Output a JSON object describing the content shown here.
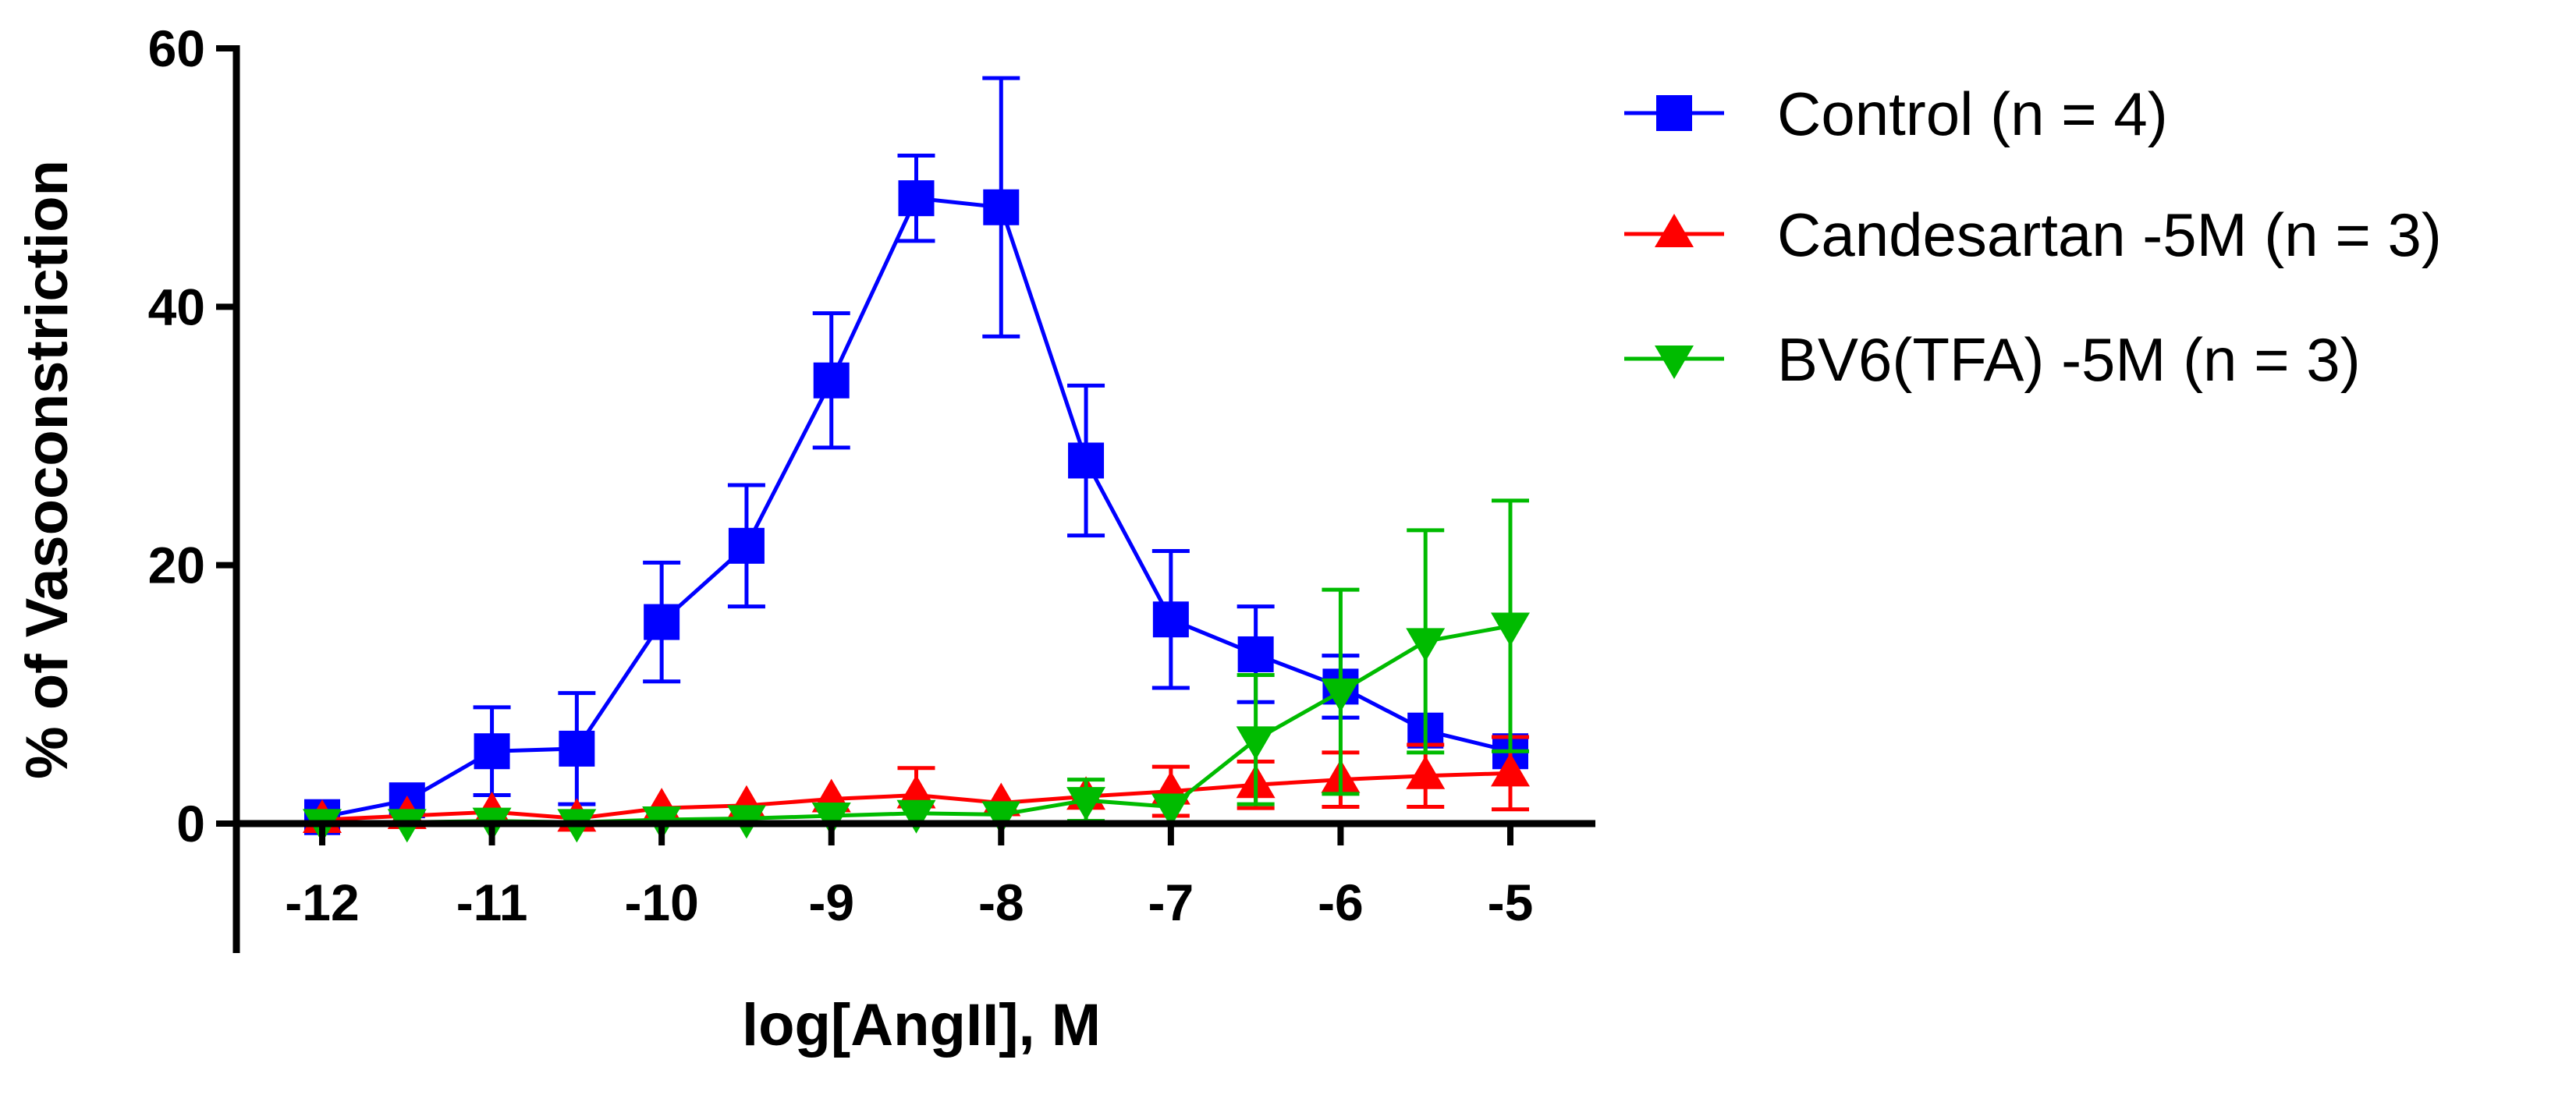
{
  "chart_data": {
    "type": "line",
    "title": "",
    "xlabel": "log[AngII], M",
    "ylabel": "% of Vasoconstriction",
    "xlim": [
      -12.5,
      -4.5
    ],
    "ylim": [
      -10,
      60
    ],
    "x_ticks": [
      -12,
      -11,
      -10,
      -9,
      -8,
      -7,
      -6,
      -5
    ],
    "x_tick_labels": [
      "-12",
      "-11",
      "-10",
      "-9",
      "-8",
      "-7",
      "-6",
      "-5"
    ],
    "y_ticks": [
      0,
      20,
      40,
      60
    ],
    "y_tick_labels": [
      "0",
      "20",
      "40",
      "60"
    ],
    "grid": false,
    "legend_position": "right",
    "series": [
      {
        "name": "Control (n = 4)",
        "color": "#0000ff",
        "marker": "square",
        "x": [
          -12,
          -11.5,
          -11,
          -10.5,
          -10,
          -9.5,
          -9,
          -8.5,
          -8,
          -7.5,
          -7,
          -6.5,
          -6,
          -5.5,
          -5
        ],
        "y": [
          0.5,
          1.8,
          5.6,
          5.8,
          15.6,
          21.5,
          34.3,
          48.4,
          47.7,
          28.1,
          15.8,
          13.1,
          10.6,
          7.2,
          5.6
        ],
        "err": [
          0,
          0,
          3.4,
          4.3,
          4.6,
          4.7,
          5.2,
          3.3,
          10,
          5.8,
          5.3,
          3.7,
          2.4,
          0,
          0
        ]
      },
      {
        "name": "Candesartan -5M (n = 3)",
        "color": "#ff0000",
        "marker": "triangle-up",
        "x": [
          -12,
          -11.5,
          -11,
          -10.5,
          -10,
          -9.5,
          -9,
          -8.5,
          -8,
          -7.5,
          -7,
          -6.5,
          -6,
          -5.5,
          -5
        ],
        "y": [
          0.3,
          0.6,
          0.9,
          0.4,
          1.2,
          1.4,
          1.9,
          2.2,
          1.6,
          2.1,
          2.5,
          3.0,
          3.4,
          3.7,
          3.9
        ],
        "err": [
          0,
          0,
          0,
          0,
          0,
          0,
          0,
          2.1,
          0,
          0,
          1.9,
          1.8,
          2.1,
          2.4,
          2.8
        ]
      },
      {
        "name": "BV6(TFA) -5M (n = 3)",
        "color": "#00bb00",
        "marker": "triangle-down",
        "x": [
          -12,
          -11.5,
          -11,
          -10.5,
          -10,
          -9.5,
          -9,
          -8.5,
          -8,
          -7.5,
          -7,
          -6.5,
          -6,
          -5.5,
          -5
        ],
        "y": [
          0.1,
          0.1,
          0.2,
          0.1,
          0.3,
          0.4,
          0.6,
          0.8,
          0.7,
          1.8,
          1.3,
          6.5,
          10.2,
          14.1,
          15.3
        ],
        "err": [
          0,
          0,
          0,
          0,
          0,
          0,
          0,
          0,
          0,
          1.6,
          0,
          5.0,
          7.9,
          8.6,
          9.7
        ]
      }
    ]
  }
}
